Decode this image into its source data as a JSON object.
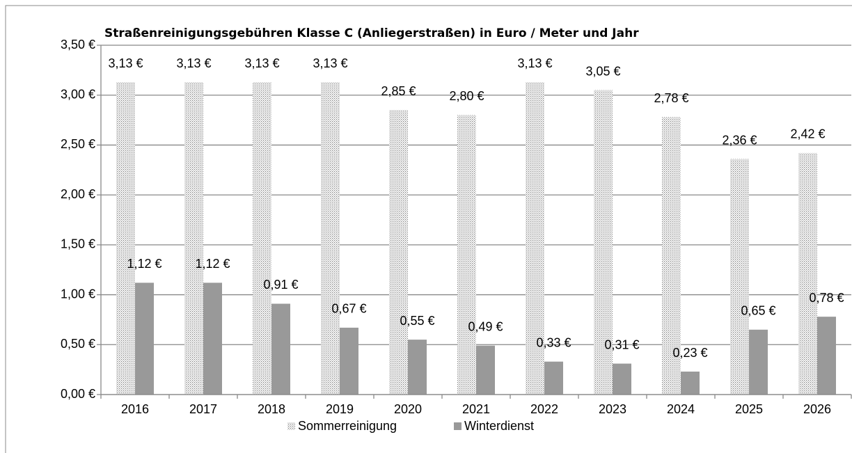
{
  "chart_data": {
    "type": "bar",
    "title": "Straßenreinigungsgebühren Klasse C (Anliegerstraßen) in Euro / Meter und Jahr",
    "categories": [
      "2016",
      "2017",
      "2018",
      "2019",
      "2020",
      "2021",
      "2022",
      "2023",
      "2024",
      "2025",
      "2026"
    ],
    "series": [
      {
        "name": "Sommerreinigung",
        "color": "#808080",
        "pattern": "dotted",
        "values": [
          3.13,
          3.13,
          3.13,
          3.13,
          2.85,
          2.8,
          3.13,
          3.05,
          2.78,
          2.36,
          2.42
        ],
        "value_labels": [
          "3,13 €",
          "3,13 €",
          "3,13 €",
          "3,13 €",
          "2,85 €",
          "2,80 €",
          "3,13 €",
          "3,05 €",
          "2,78 €",
          "2,36 €",
          "2,42 €"
        ]
      },
      {
        "name": "Winterdienst",
        "color": "#999999",
        "values": [
          1.12,
          1.12,
          0.91,
          0.67,
          0.55,
          0.49,
          0.33,
          0.31,
          0.23,
          0.65,
          0.78
        ],
        "value_labels": [
          "1,12 €",
          "1,12 €",
          "0,91 €",
          "0,67 €",
          "0,55 €",
          "0,49 €",
          "0,33 €",
          "0,31 €",
          "0,23 €",
          "0,65 €",
          "0,78 €"
        ]
      }
    ],
    "ylim": [
      0,
      3.5
    ],
    "yticks": [
      {
        "value": 0,
        "label": "0,00 €"
      },
      {
        "value": 0.5,
        "label": "0,50 €"
      },
      {
        "value": 1,
        "label": "1,00 €"
      },
      {
        "value": 1.5,
        "label": "1,50 €"
      },
      {
        "value": 2,
        "label": "2,00 €"
      },
      {
        "value": 2.5,
        "label": "2,50 €"
      },
      {
        "value": 3,
        "label": "3,00 €"
      },
      {
        "value": 3.5,
        "label": "3,50 €"
      }
    ],
    "grid": true,
    "legend": "bottom"
  }
}
